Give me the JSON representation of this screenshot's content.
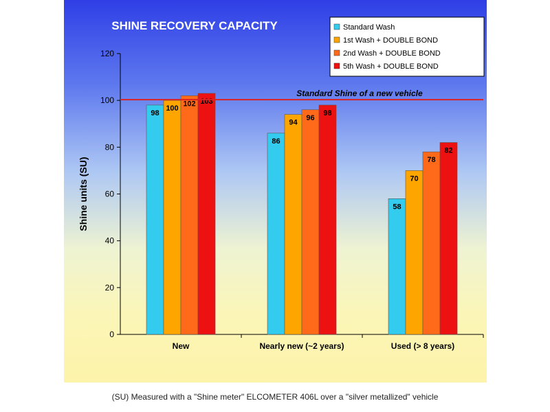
{
  "chart_data": {
    "type": "bar",
    "title": "SHINE RECOVERY CAPACITY",
    "ylabel": "Shine units  (SU)",
    "xlabel": "",
    "ylim": [
      0,
      120
    ],
    "yticks": [
      0,
      20,
      40,
      60,
      80,
      100,
      120
    ],
    "categories": [
      "New",
      "Nearly new (~2 years)",
      "Used (> 8 years)"
    ],
    "series": [
      {
        "name": "Standard Wash",
        "color": "#33ccee",
        "values": [
          98,
          86,
          58
        ]
      },
      {
        "name": "1st Wash +  DOUBLE BOND",
        "color": "#ffa500",
        "values": [
          100,
          94,
          70
        ]
      },
      {
        "name": "2nd Wash +  DOUBLE BOND",
        "color": "#ff6a1a",
        "values": [
          102,
          96,
          78
        ]
      },
      {
        "name": "5th Wash + DOUBLE BOND",
        "color": "#ee1111",
        "values": [
          103,
          98,
          82
        ]
      }
    ],
    "reference_line": {
      "value": 100,
      "label": "Standard Shine of a new vehicle",
      "color": "#dd2222"
    },
    "legend_position": "top-right",
    "grid": false
  },
  "caption": "(SU) Measured with a \"Shine meter\" ELCOMETER 406L over a \"silver metallized\" vehicle"
}
